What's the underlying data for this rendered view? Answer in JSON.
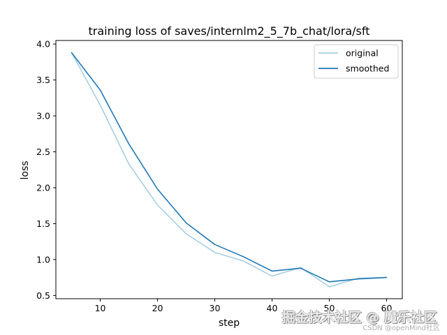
{
  "chart_data": {
    "type": "line",
    "title": "training loss of saves/internlm2_5_7b_chat/lora/sft",
    "xlabel": "step",
    "ylabel": "loss",
    "xlim": [
      2.25,
      62.75
    ],
    "ylim": [
      0.455,
      4.05
    ],
    "xticks": [
      10,
      20,
      30,
      40,
      50,
      60
    ],
    "yticks": [
      0.5,
      1.0,
      1.5,
      2.0,
      2.5,
      3.0,
      3.5,
      4.0
    ],
    "xtick_labels": [
      "10",
      "20",
      "30",
      "40",
      "50",
      "60"
    ],
    "ytick_labels": [
      "0.5",
      "1.0",
      "1.5",
      "2.0",
      "2.5",
      "3.0",
      "3.5",
      "4.0"
    ],
    "grid": false,
    "legend_position": "top-right",
    "x": [
      5,
      10,
      15,
      20,
      25,
      30,
      35,
      40,
      45,
      50,
      55,
      60
    ],
    "series": [
      {
        "name": "original",
        "color": "#a6cee3",
        "values": [
          3.88,
          3.15,
          2.33,
          1.76,
          1.36,
          1.1,
          0.98,
          0.77,
          0.89,
          0.62,
          0.74,
          0.75
        ]
      },
      {
        "name": "smoothed",
        "color": "#1f78b4",
        "values": [
          3.88,
          3.36,
          2.61,
          1.98,
          1.51,
          1.21,
          1.04,
          0.84,
          0.88,
          0.69,
          0.73,
          0.75
        ]
      }
    ]
  },
  "watermark": {
    "main": "掘金技术社区 @ 魔乐社区",
    "sub": "CSDN @openMind社区"
  }
}
